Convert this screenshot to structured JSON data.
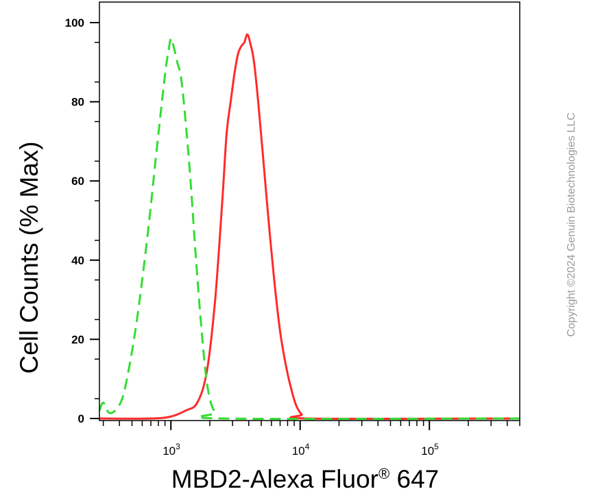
{
  "chart_data": {
    "type": "line",
    "xlabel": "MBD2-Alexa Fluor",
    "xlabel_mark": "®",
    "xlabel_suffix": " 647",
    "ylabel": "Cell Counts (% Max)",
    "x_scale": "log",
    "xlim": [
      280,
      500000
    ],
    "ylim": [
      0,
      105
    ],
    "y_ticks": [
      0,
      20,
      40,
      60,
      80,
      100
    ],
    "x_ticks": [
      {
        "base": "10",
        "exp": "3",
        "value": 1000
      },
      {
        "base": "10",
        "exp": "4",
        "value": 10000
      },
      {
        "base": "10",
        "exp": "5",
        "value": 100000
      }
    ],
    "grid": false,
    "legend": "none",
    "series": [
      {
        "color": "#ff2a2a",
        "style": "solid",
        "points": [
          [
            280,
            0
          ],
          [
            700,
            0
          ],
          [
            1000,
            0.5
          ],
          [
            1300,
            2
          ],
          [
            1600,
            4
          ],
          [
            1900,
            12
          ],
          [
            2200,
            30
          ],
          [
            2500,
            55
          ],
          [
            2700,
            72
          ],
          [
            2900,
            80
          ],
          [
            3100,
            87
          ],
          [
            3300,
            92
          ],
          [
            3500,
            94
          ],
          [
            3700,
            95
          ],
          [
            3900,
            97
          ],
          [
            4100,
            95
          ],
          [
            4400,
            90
          ],
          [
            4800,
            78
          ],
          [
            5200,
            65
          ],
          [
            5700,
            50
          ],
          [
            6300,
            35
          ],
          [
            7000,
            22
          ],
          [
            7800,
            13
          ],
          [
            8600,
            7
          ],
          [
            9400,
            3
          ],
          [
            10300,
            1
          ],
          [
            11500,
            0
          ],
          [
            500000,
            0
          ]
        ]
      },
      {
        "color": "#33dd33",
        "style": "dashed",
        "points": [
          [
            280,
            2
          ],
          [
            300,
            4
          ],
          [
            330,
            1.5
          ],
          [
            370,
            2
          ],
          [
            420,
            5
          ],
          [
            470,
            12
          ],
          [
            530,
            22
          ],
          [
            600,
            35
          ],
          [
            680,
            50
          ],
          [
            760,
            65
          ],
          [
            840,
            78
          ],
          [
            910,
            88
          ],
          [
            960,
            93
          ],
          [
            1000,
            96
          ],
          [
            1050,
            94
          ],
          [
            1120,
            90
          ],
          [
            1200,
            86
          ],
          [
            1300,
            75
          ],
          [
            1420,
            60
          ],
          [
            1550,
            42
          ],
          [
            1700,
            25
          ],
          [
            1850,
            12
          ],
          [
            2000,
            5
          ],
          [
            2200,
            1.5
          ],
          [
            2500,
            0
          ],
          [
            500000,
            0
          ]
        ]
      }
    ]
  },
  "watermark": "Copyright ©2024 Genuin Biotechnologies LLC"
}
